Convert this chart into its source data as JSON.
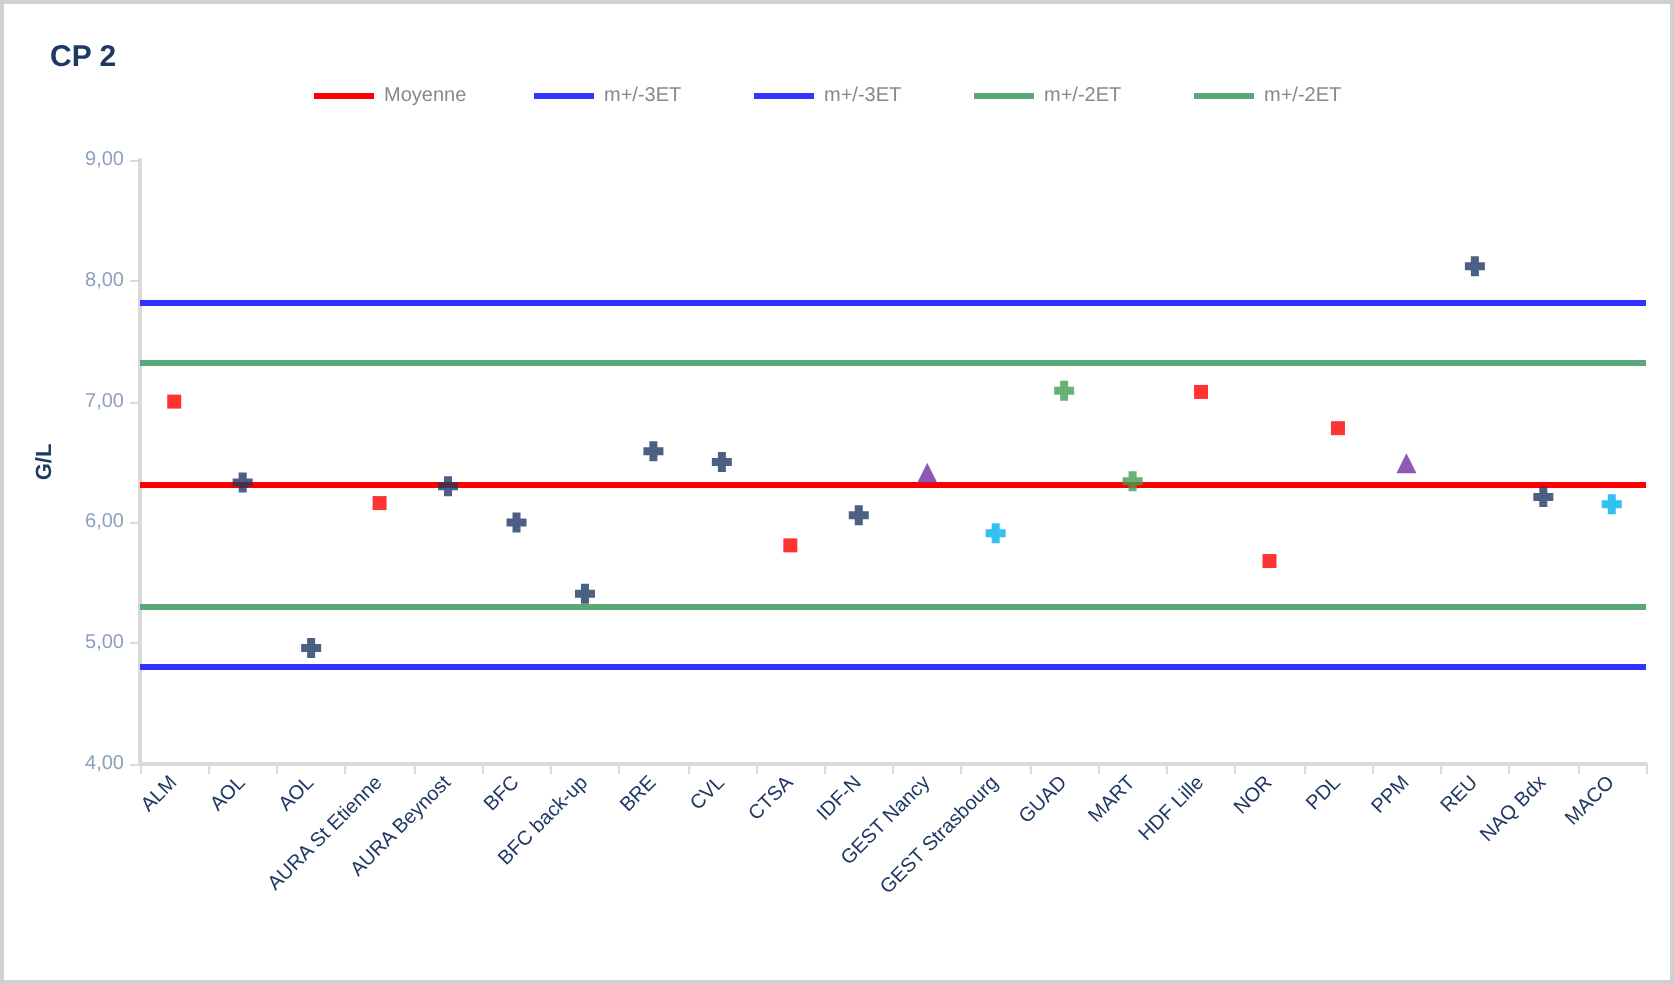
{
  "chart_data": {
    "type": "scatter",
    "title": "CP 2",
    "ylabel": "G/L",
    "categories": [
      "ALM",
      "AOL",
      "AOL",
      "AURA St Etienne",
      "AURA Beynost",
      "BFC",
      "BFC back-up",
      "BRE",
      "CVL",
      "CTSA",
      "IDF-N",
      "GEST Nancy",
      "GEST Strasbourg",
      "GUAD",
      "MART",
      "HDF Lille",
      "NOR",
      "PDL",
      "PPM",
      "REU",
      "NAQ Bdx",
      "MACO"
    ],
    "series": [
      {
        "color": "#1f3864",
        "marker": "cross",
        "values": [
          null,
          6.33,
          4.96,
          null,
          6.3,
          6.0,
          5.41,
          6.59,
          6.5,
          null,
          6.06,
          null,
          null,
          null,
          null,
          null,
          null,
          null,
          null,
          8.12,
          6.21,
          null
        ]
      },
      {
        "color": "#ff0000",
        "marker": "square",
        "values": [
          7.0,
          null,
          null,
          6.16,
          null,
          null,
          null,
          null,
          null,
          5.81,
          null,
          null,
          null,
          null,
          null,
          7.08,
          5.68,
          6.78,
          null,
          null,
          null,
          null
        ]
      },
      {
        "color": "#7030a0",
        "marker": "triangle",
        "values": [
          null,
          null,
          null,
          null,
          null,
          null,
          null,
          null,
          null,
          null,
          null,
          6.41,
          null,
          null,
          null,
          null,
          null,
          null,
          6.49,
          null,
          null,
          null
        ]
      },
      {
        "color": "#00b0f0",
        "marker": "cross",
        "values": [
          null,
          null,
          null,
          null,
          null,
          null,
          null,
          null,
          null,
          null,
          null,
          null,
          5.91,
          null,
          null,
          null,
          null,
          null,
          null,
          null,
          null,
          6.15
        ]
      },
      {
        "color": "#3f9f4f",
        "marker": "cross",
        "values": [
          null,
          null,
          null,
          null,
          null,
          null,
          null,
          null,
          null,
          null,
          null,
          null,
          null,
          7.09,
          6.34,
          null,
          null,
          null,
          null,
          null,
          null,
          null
        ]
      }
    ],
    "ref_lines": [
      {
        "axis": "y",
        "value": 6.31,
        "label": "Moyenne",
        "color": "#ff0000"
      },
      {
        "axis": "y",
        "value": 7.82,
        "label": "m+/-3ET",
        "color": "#3333ff"
      },
      {
        "axis": "y",
        "value": 4.8,
        "label": "m+/-3ET",
        "color": "#3333ff"
      },
      {
        "axis": "y",
        "value": 7.32,
        "label": "m+/-2ET",
        "color": "#5aa877"
      },
      {
        "axis": "y",
        "value": 5.3,
        "label": "m+/-2ET",
        "color": "#5aa877"
      }
    ],
    "ylim": [
      4,
      9
    ],
    "yticks": [
      {
        "value": 4,
        "label": "4,00"
      },
      {
        "value": 5,
        "label": "5,00"
      },
      {
        "value": 6,
        "label": "6,00"
      },
      {
        "value": 7,
        "label": "7,00"
      },
      {
        "value": 8,
        "label": "8,00"
      },
      {
        "value": 9,
        "label": "9,00"
      }
    ],
    "grid": false,
    "legend": "top"
  }
}
